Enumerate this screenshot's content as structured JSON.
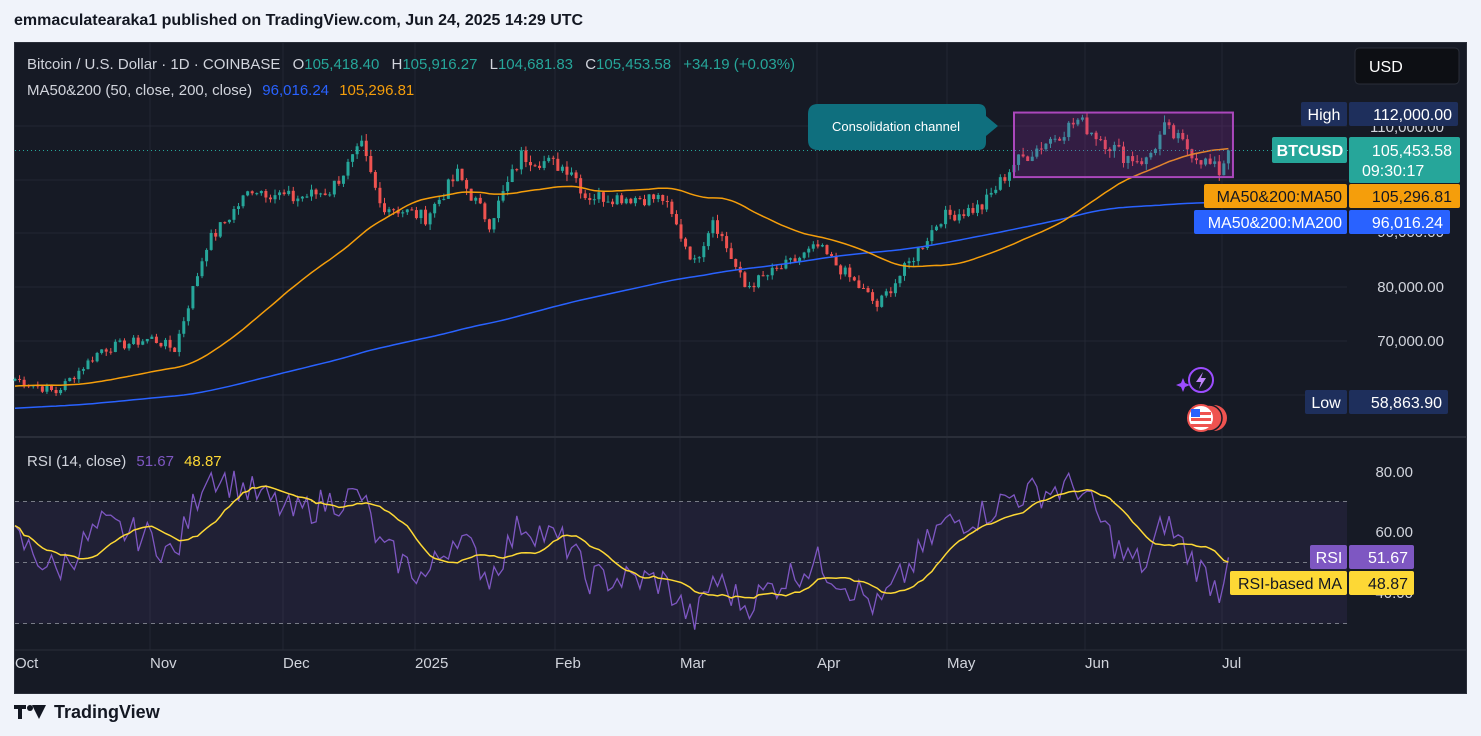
{
  "header": {
    "publisher_line": "emmaculatearaka1 published on TradingView.com, Jun 24, 2025 14:29 UTC"
  },
  "legend": {
    "symbol": "Bitcoin / U.S. Dollar · 1D · COINBASE",
    "open_label": "O",
    "open": "105,418.40",
    "high_label": "H",
    "high": "105,916.27",
    "low_label": "L",
    "low": "104,681.83",
    "close_label": "C",
    "close": "105,453.58",
    "change": "+34.19 (+0.03%)",
    "ma_label": "MA50&200 (50, close, 200, close)",
    "ma200_value": "96,016.24",
    "ma50_value": "105,296.81",
    "rsi_label": "RSI (14, close)",
    "rsi_value": "51.67",
    "rsi_ma_value": "48.87"
  },
  "currency_button": "USD",
  "annotation": {
    "text": "Consolidation channel"
  },
  "tags": {
    "high_label": "High",
    "high_value": "112,000.00",
    "symbol_label": "BTCUSD",
    "symbol_price": "105,453.58",
    "countdown": "09:30:17",
    "ma50_label": "MA50&200:MA50",
    "ma50_value": "105,296.81",
    "ma200_label": "MA50&200:MA200",
    "ma200_value": "96,016.24",
    "low_label": "Low",
    "low_value": "58,863.90",
    "rsi_label": "RSI",
    "rsi_value": "51.67",
    "rsi_ma_label": "RSI-based MA",
    "rsi_ma_value": "48.87"
  },
  "price_axis_labels": [
    "110,000.00",
    "90,000.00",
    "80,000.00",
    "70,000.00",
    "60,000.00"
  ],
  "rsi_axis_labels": [
    "80.00",
    "60.00",
    "40.00"
  ],
  "time_axis_labels": [
    "Oct",
    "Nov",
    "Dec",
    "2025",
    "Feb",
    "Mar",
    "Apr",
    "May",
    "Jun",
    "Jul"
  ],
  "footer": {
    "brand": "TradingView"
  },
  "colors": {
    "background": "#161a25",
    "up": "#26a69a",
    "down": "#ef5350",
    "ma50": "#f59e0b",
    "ma200": "#2962ff",
    "rsi": "#7e57c2",
    "rsi_ma": "#fdd835",
    "channel": "#9c27b0",
    "annotation": "#0f6f7e"
  },
  "icons": [
    "lightning-icon",
    "us-flag-events-icon",
    "tradingview-logo-icon"
  ],
  "chart_data": [
    {
      "type": "candlestick",
      "title": "Bitcoin / U.S. Dollar · 1D · COINBASE",
      "x_range": [
        "2024-10-01",
        "2025-07-20"
      ],
      "ylim": [
        58000,
        114000
      ],
      "grid": true,
      "keypoints_close": [
        [
          "2024-10-01",
          63000
        ],
        [
          "2024-10-10",
          60500
        ],
        [
          "2024-10-20",
          68500
        ],
        [
          "2024-10-31",
          70500
        ],
        [
          "2024-11-05",
          68500
        ],
        [
          "2024-11-12",
          88000
        ],
        [
          "2024-11-22",
          98500
        ],
        [
          "2024-12-01",
          96500
        ],
        [
          "2024-12-09",
          98000
        ],
        [
          "2024-12-16",
          106000
        ],
        [
          "2024-12-20",
          95500
        ],
        [
          "2024-12-30",
          93000
        ],
        [
          "2025-01-06",
          101000
        ],
        [
          "2025-01-13",
          92000
        ],
        [
          "2025-01-20",
          104500
        ],
        [
          "2025-01-31",
          102000
        ],
        [
          "2025-02-03",
          97000
        ],
        [
          "2025-02-20",
          96500
        ],
        [
          "2025-02-27",
          84500
        ],
        [
          "2025-03-03",
          93000
        ],
        [
          "2025-03-10",
          80000
        ],
        [
          "2025-03-20",
          84500
        ],
        [
          "2025-03-26",
          87500
        ],
        [
          "2025-04-06",
          78500
        ],
        [
          "2025-04-08",
          76500
        ],
        [
          "2025-04-15",
          84500
        ],
        [
          "2025-04-22",
          93000
        ],
        [
          "2025-05-01",
          95000
        ],
        [
          "2025-05-08",
          103000
        ],
        [
          "2025-05-22",
          111000
        ],
        [
          "2025-06-01",
          104500
        ],
        [
          "2025-06-06",
          103500
        ],
        [
          "2025-06-10",
          109500
        ],
        [
          "2025-06-17",
          104500
        ],
        [
          "2025-06-22",
          101500
        ],
        [
          "2025-06-24",
          105453.58
        ]
      ],
      "series": [
        {
          "name": "MA50",
          "last": 105296.81
        },
        {
          "name": "MA200",
          "last": 96016.24
        }
      ],
      "annotations": [
        "Consolidation channel"
      ],
      "high_marker": 112000.0,
      "low_marker": 58863.9,
      "last_close": 105453.58
    },
    {
      "type": "line",
      "title": "RSI (14, close)",
      "ylim": [
        28,
        87
      ],
      "bands": [
        30,
        70
      ],
      "keypoints_rsi": [
        [
          "2024-10-01",
          58
        ],
        [
          "2024-10-10",
          47
        ],
        [
          "2024-10-20",
          62
        ],
        [
          "2024-10-31",
          58
        ],
        [
          "2024-11-05",
          52
        ],
        [
          "2024-11-12",
          80
        ],
        [
          "2024-11-22",
          73
        ],
        [
          "2024-12-01",
          66
        ],
        [
          "2024-12-09",
          70
        ],
        [
          "2024-12-16",
          72
        ],
        [
          "2024-12-20",
          55
        ],
        [
          "2024-12-30",
          45
        ],
        [
          "2025-01-06",
          60
        ],
        [
          "2025-01-13",
          45
        ],
        [
          "2025-01-20",
          63
        ],
        [
          "2025-01-31",
          55
        ],
        [
          "2025-02-03",
          45
        ],
        [
          "2025-02-20",
          44
        ],
        [
          "2025-02-27",
          30
        ],
        [
          "2025-03-03",
          45
        ],
        [
          "2025-03-10",
          36
        ],
        [
          "2025-03-20",
          46
        ],
        [
          "2025-03-26",
          50
        ],
        [
          "2025-04-06",
          38
        ],
        [
          "2025-04-08",
          35
        ],
        [
          "2025-04-15",
          48
        ],
        [
          "2025-04-22",
          62
        ],
        [
          "2025-05-01",
          66
        ],
        [
          "2025-05-08",
          72
        ],
        [
          "2025-05-22",
          75
        ],
        [
          "2025-06-01",
          52
        ],
        [
          "2025-06-06",
          49
        ],
        [
          "2025-06-10",
          64
        ],
        [
          "2025-06-17",
          49
        ],
        [
          "2025-06-22",
          41
        ],
        [
          "2025-06-24",
          51.67
        ]
      ],
      "series": [
        {
          "name": "RSI",
          "last": 51.67
        },
        {
          "name": "RSI-based MA",
          "last": 48.87
        }
      ]
    }
  ]
}
